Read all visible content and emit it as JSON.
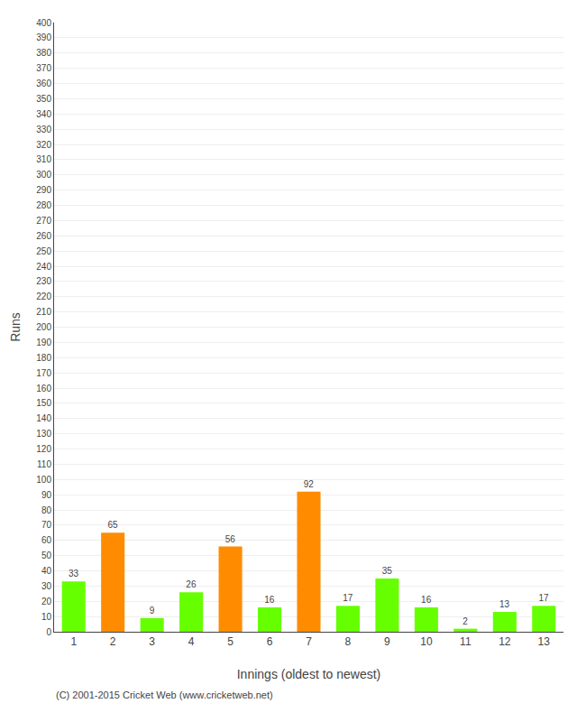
{
  "chart_data": {
    "type": "bar",
    "categories": [
      "1",
      "2",
      "3",
      "4",
      "5",
      "6",
      "7",
      "8",
      "9",
      "10",
      "11",
      "12",
      "13"
    ],
    "values": [
      33,
      65,
      9,
      26,
      56,
      16,
      92,
      17,
      35,
      16,
      2,
      13,
      17
    ],
    "colors": [
      "#66ff00",
      "#ff8c00",
      "#66ff00",
      "#66ff00",
      "#ff8c00",
      "#66ff00",
      "#ff8c00",
      "#66ff00",
      "#66ff00",
      "#66ff00",
      "#66ff00",
      "#66ff00",
      "#66ff00"
    ],
    "xlabel": "Innings (oldest to newest)",
    "ylabel": "Runs",
    "ylim": [
      0,
      400
    ],
    "yticks": [
      0,
      10,
      20,
      30,
      40,
      50,
      60,
      70,
      80,
      90,
      100,
      110,
      120,
      130,
      140,
      150,
      160,
      170,
      180,
      190,
      200,
      210,
      220,
      230,
      240,
      250,
      260,
      270,
      280,
      290,
      300,
      310,
      320,
      330,
      340,
      350,
      360,
      370,
      380,
      390,
      400
    ],
    "grid": true,
    "data_labels": true,
    "annotations": [
      "(C) 2001-2015 Cricket Web (www.cricketweb.net)"
    ]
  }
}
